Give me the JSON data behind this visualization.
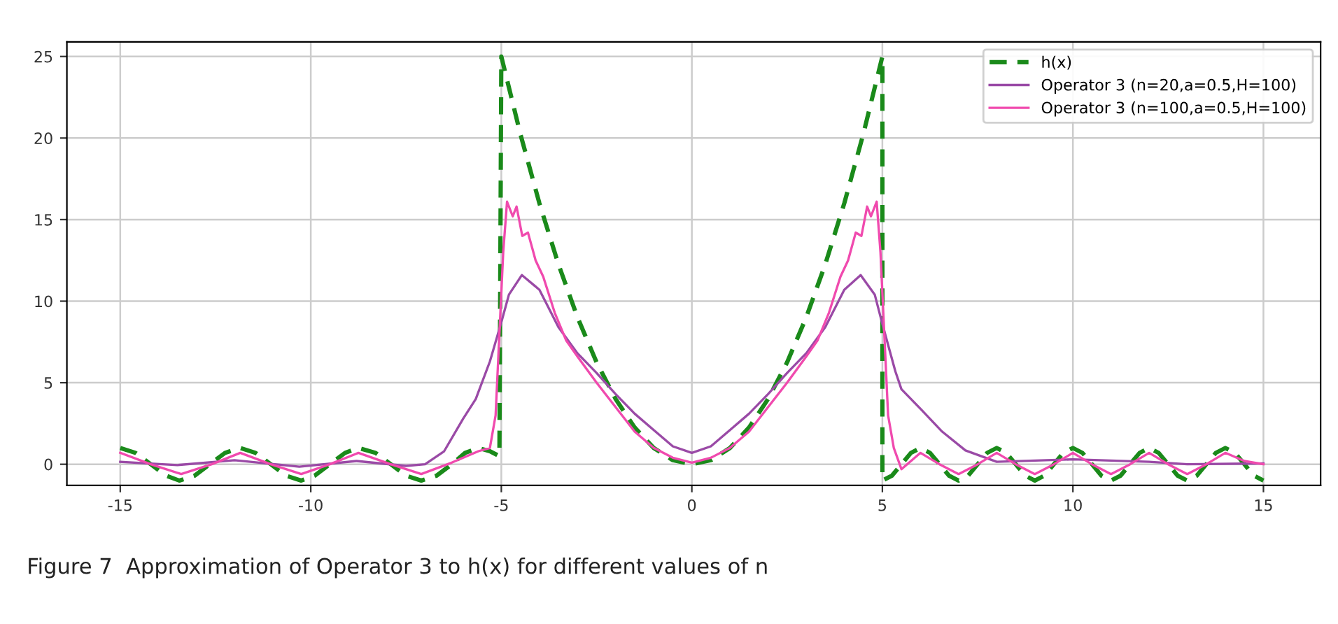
{
  "chart_data": {
    "type": "line",
    "xlim": [
      -16.4,
      16.5
    ],
    "ylim": [
      -1.3,
      25.9
    ],
    "xticks": [
      -15,
      -10,
      -5,
      0,
      5,
      10,
      15
    ],
    "yticks": [
      0,
      5,
      10,
      15,
      20,
      25
    ],
    "grid": true,
    "legend": "top right",
    "marker": "none",
    "annotations": [
      "Figure 7  Approximation of Operator 3 to h(x) for different values of n"
    ],
    "series": [
      {
        "name": "h(x)",
        "color": "#1a8a1a",
        "line_style": "dashed",
        "x": [
          -15,
          -14.6,
          -14.2,
          -13.8,
          -13.45,
          -13.05,
          -12.65,
          -12.25,
          -11.85,
          -11.45,
          -11.05,
          -10.65,
          -10.25,
          -9.9,
          -9.5,
          -9.1,
          -8.75,
          -8.3,
          -7.9,
          -7.5,
          -7.1,
          -6.7,
          -6.3,
          -5.95,
          -5.6,
          -5.3,
          -5.05,
          -5,
          -4.5,
          -4,
          -3.5,
          -3,
          -2.5,
          -2,
          -1.5,
          -1,
          -0.5,
          0,
          0.5,
          1,
          1.5,
          2,
          2.5,
          3,
          3.5,
          4,
          4.5,
          5,
          5,
          5.25,
          5.5,
          5.75,
          6,
          6.25,
          6.5,
          6.75,
          7,
          7.25,
          7.5,
          7.75,
          8,
          8.25,
          8.5,
          8.75,
          9,
          9.25,
          9.5,
          9.75,
          10,
          10.25,
          10.5,
          10.75,
          11,
          11.25,
          11.5,
          11.75,
          12,
          12.25,
          12.5,
          12.75,
          13,
          13.25,
          13.5,
          13.75,
          14,
          14.25,
          14.5,
          14.75,
          15
        ],
        "values": [
          1,
          0.7,
          0,
          -0.7,
          -1,
          -0.7,
          0,
          0.7,
          1,
          0.7,
          0,
          -0.7,
          -1,
          -0.7,
          0,
          0.7,
          1,
          0.7,
          0,
          -0.7,
          -1,
          -0.7,
          0,
          0.7,
          1,
          0.8,
          0.5,
          25,
          20.25,
          16,
          12.25,
          9,
          6.25,
          4,
          2.25,
          1,
          0.25,
          0,
          0.25,
          1,
          2.25,
          4,
          6.25,
          9,
          12.25,
          16,
          20.25,
          25,
          -1,
          -0.7,
          0,
          0.7,
          1,
          0.7,
          0,
          -0.7,
          -1,
          -0.7,
          0,
          0.7,
          1,
          0.7,
          0,
          -0.7,
          -1,
          -0.7,
          0,
          0.7,
          1,
          0.7,
          0,
          -0.7,
          -1,
          -0.7,
          0,
          0.7,
          1,
          0.7,
          0,
          -0.7,
          -1,
          -0.7,
          0,
          0.7,
          1,
          0.7,
          0,
          -0.7,
          -1
        ]
      },
      {
        "name": "Operator 3 (n=20,a=0.5,H=100)",
        "color": "#9a4aa6",
        "line_style": "solid",
        "x": [
          -15,
          -13.5,
          -12,
          -10.3,
          -8.8,
          -7.5,
          -7,
          -6.5,
          -6,
          -5.67,
          -5.3,
          -5,
          -4.8,
          -4.46,
          -4,
          -3.5,
          -3,
          -2.5,
          -2,
          -1.5,
          -1,
          -0.5,
          0,
          0.5,
          1,
          1.5,
          2,
          2.5,
          3,
          3.5,
          4,
          4.43,
          4.8,
          5,
          5.34,
          5.5,
          6,
          6.57,
          7.18,
          8,
          10,
          12,
          13,
          15
        ],
        "values": [
          0.15,
          -0.05,
          0.25,
          -0.15,
          0.2,
          -0.1,
          0,
          0.8,
          2.8,
          4,
          6.3,
          8.7,
          10.4,
          11.6,
          10.7,
          8.4,
          6.8,
          5.6,
          4.3,
          3.1,
          2.1,
          1.1,
          0.7,
          1.1,
          2.1,
          3.1,
          4.3,
          5.6,
          6.8,
          8.4,
          10.7,
          11.6,
          10.4,
          8.6,
          5.7,
          4.6,
          3.4,
          2,
          0.85,
          0.15,
          0.3,
          0.15,
          0,
          0.05
        ]
      },
      {
        "name": "Operator 3 (n=100,a=0.5,H=100)",
        "color": "#f04aae",
        "line_style": "solid",
        "x": [
          -15,
          -14.2,
          -13.4,
          -12.6,
          -11.85,
          -11.05,
          -10.25,
          -9.5,
          -8.75,
          -7.9,
          -7.1,
          -6.3,
          -5.6,
          -5.3,
          -5.15,
          -5.05,
          -4.95,
          -4.85,
          -4.7,
          -4.6,
          -4.45,
          -4.3,
          -4.1,
          -3.9,
          -3.6,
          -3.3,
          -3,
          -2.5,
          -2,
          -1.5,
          -1,
          -0.5,
          0,
          0.5,
          1,
          1.5,
          2,
          2.5,
          3,
          3.3,
          3.6,
          3.9,
          4.1,
          4.3,
          4.45,
          4.6,
          4.7,
          4.85,
          4.95,
          5.05,
          5.15,
          5.3,
          5.5,
          6,
          6.5,
          7,
          7.5,
          8,
          8.5,
          9,
          9.5,
          10,
          10.5,
          11,
          11.5,
          12,
          12.5,
          13,
          13.5,
          14,
          14.5,
          15
        ],
        "values": [
          0.7,
          0,
          -0.6,
          0,
          0.7,
          0,
          -0.6,
          0,
          0.7,
          0,
          -0.6,
          0.1,
          0.8,
          1,
          3,
          8,
          13,
          16.1,
          15.2,
          15.8,
          14,
          14.2,
          12.5,
          11.5,
          9.3,
          7.6,
          6.6,
          5,
          3.5,
          2,
          1,
          0.4,
          0.1,
          0.4,
          1,
          2,
          3.5,
          5,
          6.6,
          7.6,
          9.3,
          11.5,
          12.5,
          14.2,
          14,
          15.8,
          15.2,
          16.1,
          13,
          8,
          3,
          1,
          -0.3,
          0.7,
          0,
          -0.6,
          0,
          0.7,
          0,
          -0.6,
          0,
          0.7,
          0,
          -0.6,
          0,
          0.7,
          0,
          -0.6,
          0,
          0.7,
          0.2,
          0
        ]
      }
    ]
  }
}
